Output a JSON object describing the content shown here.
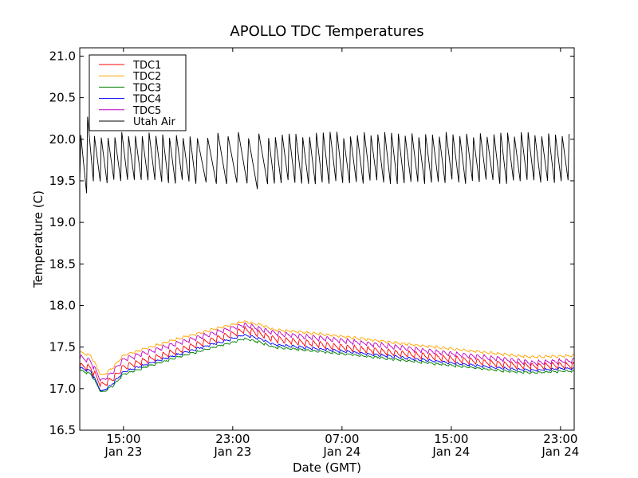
{
  "chart_data": {
    "type": "line",
    "title": "APOLLO TDC Temperatures",
    "xlabel": "Date (GMT)",
    "ylabel": "Temperature (C)",
    "x_unit": "hours since Jan 23 00:00 GMT",
    "xlim": [
      11.8,
      48.0
    ],
    "ylim": [
      16.5,
      21.1
    ],
    "grid": false,
    "legend_position": "top-left",
    "yticks": [
      16.5,
      17.0,
      17.5,
      18.0,
      18.5,
      19.0,
      19.5,
      20.0,
      20.5,
      21.0
    ],
    "ytick_labels": [
      "16.5",
      "17.0",
      "17.5",
      "18.0",
      "18.5",
      "19.0",
      "19.5",
      "20.0",
      "20.5",
      "21.0"
    ],
    "xticks": [
      15,
      23,
      31,
      39,
      47
    ],
    "xtick_labels": [
      {
        "time": "15:00",
        "date": "Jan 23"
      },
      {
        "time": "23:00",
        "date": "Jan 23"
      },
      {
        "time": "07:00",
        "date": "Jan 24"
      },
      {
        "time": "15:00",
        "date": "Jan 24"
      },
      {
        "time": "23:00",
        "date": "Jan 24"
      }
    ],
    "series": [
      {
        "name": "TDC1",
        "color": "#ff0000",
        "ripple": 0.04,
        "x": [
          11.8,
          12.6,
          13.4,
          14.2,
          15.0,
          17.0,
          19.0,
          21.0,
          23.0,
          23.8,
          25.0,
          26.0,
          28.0,
          31.0,
          35.0,
          39.0,
          43.0,
          45.0,
          47.0,
          48.0
        ],
        "values": [
          17.28,
          17.25,
          17.04,
          17.12,
          17.26,
          17.36,
          17.46,
          17.56,
          17.66,
          17.71,
          17.66,
          17.6,
          17.56,
          17.5,
          17.43,
          17.36,
          17.29,
          17.27,
          17.28,
          17.28
        ]
      },
      {
        "name": "TDC2",
        "color": "#ffa500",
        "ripple": 0.015,
        "x": [
          11.8,
          12.6,
          13.4,
          14.2,
          15.0,
          17.0,
          19.0,
          21.0,
          23.0,
          23.8,
          25.0,
          26.0,
          28.0,
          31.0,
          35.0,
          39.0,
          43.0,
          45.0,
          47.0,
          48.0
        ],
        "values": [
          17.44,
          17.4,
          17.15,
          17.25,
          17.4,
          17.5,
          17.6,
          17.69,
          17.77,
          17.81,
          17.77,
          17.71,
          17.68,
          17.63,
          17.55,
          17.48,
          17.41,
          17.38,
          17.39,
          17.4
        ]
      },
      {
        "name": "TDC3",
        "color": "#008000",
        "ripple": 0.012,
        "x": [
          11.8,
          12.6,
          13.4,
          14.2,
          15.0,
          17.0,
          19.0,
          21.0,
          23.0,
          23.8,
          25.0,
          26.0,
          28.0,
          31.0,
          35.0,
          39.0,
          43.0,
          45.0,
          47.0,
          48.0
        ],
        "values": [
          17.22,
          17.18,
          16.95,
          17.03,
          17.17,
          17.28,
          17.38,
          17.47,
          17.56,
          17.6,
          17.56,
          17.5,
          17.47,
          17.42,
          17.35,
          17.28,
          17.21,
          17.19,
          17.21,
          17.21
        ]
      },
      {
        "name": "TDC4",
        "color": "#0000ff",
        "ripple": 0.015,
        "x": [
          11.8,
          12.6,
          13.4,
          14.2,
          15.0,
          17.0,
          19.0,
          21.0,
          23.0,
          23.8,
          25.0,
          26.0,
          28.0,
          31.0,
          35.0,
          39.0,
          43.0,
          45.0,
          47.0,
          48.0
        ],
        "values": [
          17.25,
          17.21,
          16.96,
          17.06,
          17.2,
          17.31,
          17.41,
          17.51,
          17.6,
          17.65,
          17.6,
          17.53,
          17.5,
          17.45,
          17.38,
          17.31,
          17.24,
          17.22,
          17.24,
          17.24
        ]
      },
      {
        "name": "TDC5",
        "color": "#bf00bf",
        "ripple": 0.03,
        "x": [
          11.8,
          12.6,
          13.4,
          14.2,
          15.0,
          17.0,
          19.0,
          21.0,
          23.0,
          23.8,
          25.0,
          26.0,
          28.0,
          31.0,
          35.0,
          39.0,
          43.0,
          45.0,
          47.0,
          48.0
        ],
        "values": [
          17.38,
          17.33,
          17.09,
          17.2,
          17.35,
          17.45,
          17.55,
          17.64,
          17.73,
          17.77,
          17.72,
          17.67,
          17.63,
          17.58,
          17.5,
          17.42,
          17.35,
          17.31,
          17.33,
          17.34
        ]
      },
      {
        "name": "Utah Air",
        "color": "#000000",
        "oscillation": {
          "low": 19.49,
          "high": 20.05,
          "period_hours": 0.5
        },
        "peaks_notable": [
          {
            "x": 12.2,
            "value": 20.27
          },
          {
            "x": 12.5,
            "value": 19.35
          },
          {
            "x": 23.6,
            "value": 20.23
          },
          {
            "x": 25.1,
            "value": 20.25
          },
          {
            "x": 25.0,
            "value": 19.4
          }
        ],
        "x": [
          11.8,
          15.0,
          20.0,
          23.0,
          25.5,
          30.0,
          40.0,
          48.0
        ],
        "values": [
          19.75,
          19.78,
          19.77,
          19.8,
          19.75,
          19.77,
          19.77,
          19.76
        ]
      }
    ]
  }
}
